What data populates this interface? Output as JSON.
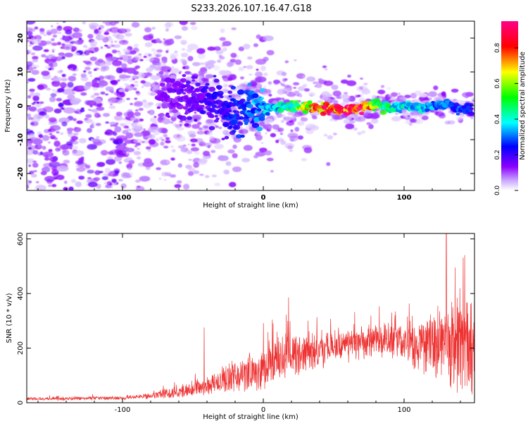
{
  "title": "S233.2026.107.16.47.G18",
  "chart_data": [
    {
      "type": "heatmap",
      "name": "spectrogram",
      "xlabel": "Height of straight line (km)",
      "ylabel": "Frequency (Hz)",
      "xlim": [
        -168,
        150
      ],
      "ylim": [
        -25,
        25
      ],
      "xticks": [
        -100,
        0,
        100
      ],
      "yticks": [
        -20,
        -10,
        0,
        10,
        20
      ],
      "xtick_labels": [
        "-100",
        "0",
        "100"
      ],
      "ytick_labels": [
        "-20",
        "-10",
        "0",
        "10",
        "20"
      ],
      "colorbar": {
        "label": "Normalized spectral amplitude",
        "range": [
          0,
          0.95
        ],
        "ticks": [
          0.0,
          0.2,
          0.4,
          0.6,
          0.8
        ],
        "tick_labels": [
          "0.0",
          "0.2",
          "0.4",
          "0.6",
          "0.8"
        ],
        "colormap": [
          "#ffffff",
          "#8b00ff",
          "#0000ff",
          "#00ffff",
          "#00ff00",
          "#ffff00",
          "#ff0000",
          "#ff00aa"
        ]
      },
      "signal_track": {
        "x": [
          -75,
          -60,
          -45,
          -30,
          -20,
          -10,
          0,
          10,
          20,
          30,
          40,
          50,
          60,
          70,
          80,
          90,
          100,
          110,
          120,
          130,
          140,
          148
        ],
        "frequency": [
          1.5,
          2.5,
          2.0,
          -1.0,
          -3.0,
          0.5,
          -1.0,
          -0.5,
          0.0,
          -0.5,
          -0.5,
          -0.8,
          -1.0,
          -0.5,
          0.5,
          -1.0,
          0.0,
          -0.5,
          0.0,
          0.3,
          -0.8,
          -0.5
        ],
        "amplitude": [
          0.12,
          0.15,
          0.18,
          0.22,
          0.25,
          0.3,
          0.35,
          0.38,
          0.5,
          0.65,
          0.8,
          0.85,
          0.9,
          0.95,
          0.6,
          0.45,
          0.4,
          0.4,
          0.35,
          0.3,
          0.28,
          0.25
        ]
      },
      "noise_level": 0.08
    },
    {
      "type": "line",
      "name": "snr",
      "xlabel": "Height of straight line (km)",
      "ylabel": "SNR (10 * v/v)",
      "xlim": [
        -168,
        150
      ],
      "ylim": [
        0,
        620
      ],
      "xticks": [
        -100,
        0,
        100
      ],
      "yticks": [
        0,
        200,
        400,
        600
      ],
      "xtick_labels": [
        "-100",
        "0",
        "100"
      ],
      "ytick_labels": [
        "0",
        "200",
        "400",
        "600"
      ],
      "series": [
        {
          "name": "SNR",
          "color": "#ee3333",
          "envelope_x": [
            -168,
            -140,
            -100,
            -80,
            -60,
            -40,
            -20,
            0,
            10,
            20,
            30,
            40,
            60,
            80,
            90,
            100,
            110,
            120,
            130,
            140,
            150
          ],
          "envelope_mean": [
            15,
            15,
            18,
            25,
            40,
            65,
            95,
            125,
            155,
            175,
            185,
            195,
            210,
            225,
            230,
            225,
            215,
            210,
            200,
            195,
            190
          ],
          "envelope_spread": [
            6,
            6,
            7,
            10,
            20,
            35,
            55,
            70,
            75,
            75,
            70,
            65,
            60,
            55,
            60,
            80,
            100,
            130,
            160,
            170,
            170
          ],
          "peaks": [
            {
              "x": -42,
              "y": 275
            },
            {
              "x": 18,
              "y": 385
            },
            {
              "x": 130,
              "y": 620
            },
            {
              "x": 143,
              "y": 540
            }
          ]
        }
      ]
    }
  ]
}
